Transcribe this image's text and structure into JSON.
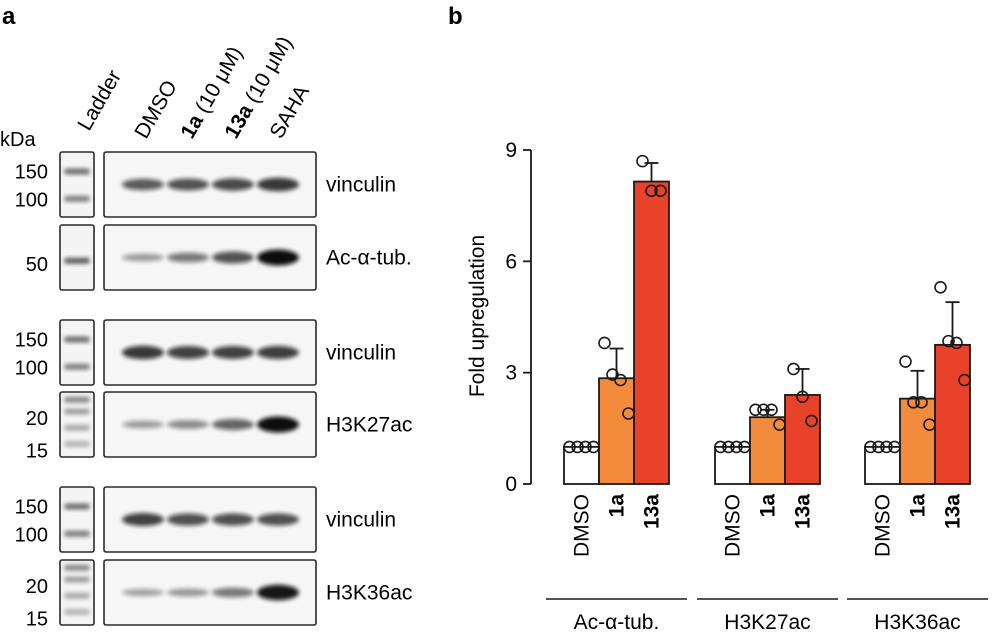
{
  "panel_a": {
    "label": "a",
    "ladder_header": "Ladder",
    "kda_label": "kDa",
    "lanes": [
      {
        "label": "DMSO",
        "bold": "",
        "rest": ""
      },
      {
        "label": "",
        "bold": "1a",
        "rest": " (10 μM)"
      },
      {
        "label": "",
        "bold": "13a",
        "rest": " (10 μM)"
      },
      {
        "label": "SAHA",
        "bold": "",
        "rest": ""
      }
    ],
    "blots": [
      {
        "label": "vinculin",
        "markers": [
          "150",
          "100"
        ],
        "intensities": [
          0.55,
          0.6,
          0.65,
          0.75
        ]
      },
      {
        "label": "Ac-α-tub.",
        "markers": [
          "50"
        ],
        "intensities": [
          0.18,
          0.38,
          0.6,
          1.0
        ]
      },
      {
        "label": "vinculin",
        "markers": [
          "150",
          "100"
        ],
        "intensities": [
          0.75,
          0.7,
          0.7,
          0.72
        ]
      },
      {
        "label": "H3K27ac",
        "markers": [
          "20",
          "15"
        ],
        "intensities": [
          0.18,
          0.28,
          0.5,
          1.0
        ]
      },
      {
        "label": "vinculin",
        "markers": [
          "150",
          "100"
        ],
        "intensities": [
          0.7,
          0.62,
          0.62,
          0.62
        ]
      },
      {
        "label": "H3K36ac",
        "markers": [
          "20",
          "15"
        ],
        "intensities": [
          0.14,
          0.2,
          0.38,
          0.95
        ]
      }
    ]
  },
  "chart_data": {
    "type": "bar",
    "panel_label": "b",
    "title": "",
    "xlabel": "",
    "ylabel": "Fold upregulation",
    "ylim": [
      0,
      9
    ],
    "yticks": [
      "0",
      "3",
      "6",
      "9"
    ],
    "grid": false,
    "groups": [
      {
        "name": "Ac-α-tub.",
        "bars": [
          {
            "category": "DMSO",
            "value": 1.0,
            "err": 0,
            "points": [
              1.0,
              1.0,
              1.0,
              1.0
            ],
            "color": "#ffffff"
          },
          {
            "category": "1a",
            "value": 2.85,
            "err": 0.8,
            "points": [
              3.8,
              2.95,
              2.8,
              1.9
            ],
            "color": "#f28c3c"
          },
          {
            "category": "13a",
            "value": 8.15,
            "err": 0.5,
            "points": [
              8.7,
              7.9,
              7.9
            ],
            "color": "#e8432a"
          }
        ]
      },
      {
        "name": "H3K27ac",
        "bars": [
          {
            "category": "DMSO",
            "value": 1.0,
            "err": 0,
            "points": [
              1.0,
              1.0,
              1.0,
              1.0
            ],
            "color": "#ffffff"
          },
          {
            "category": "1a",
            "value": 1.8,
            "err": 0.2,
            "points": [
              2.0,
              2.0,
              2.0,
              1.6
            ],
            "color": "#f28c3c"
          },
          {
            "category": "13a",
            "value": 2.4,
            "err": 0.7,
            "points": [
              3.1,
              2.35,
              1.7
            ],
            "color": "#e8432a"
          }
        ]
      },
      {
        "name": "H3K36ac",
        "bars": [
          {
            "category": "DMSO",
            "value": 1.0,
            "err": 0,
            "points": [
              1.0,
              1.0,
              1.0,
              1.0
            ],
            "color": "#ffffff"
          },
          {
            "category": "1a",
            "value": 2.3,
            "err": 0.75,
            "points": [
              3.3,
              2.2,
              2.2,
              1.6
            ],
            "color": "#f28c3c"
          },
          {
            "category": "13a",
            "value": 3.75,
            "err": 1.15,
            "points": [
              5.3,
              3.85,
              3.8,
              2.8
            ],
            "color": "#e8432a"
          }
        ]
      }
    ]
  }
}
